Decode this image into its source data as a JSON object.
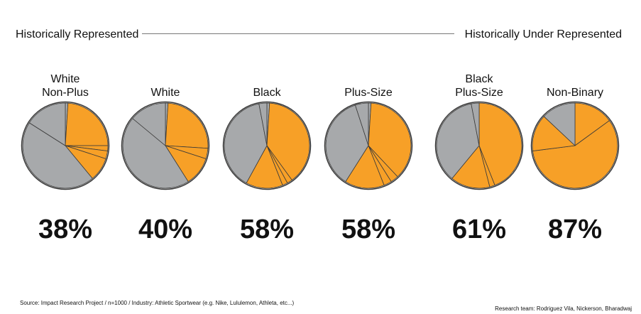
{
  "header": {
    "left_label": "Historically Represented",
    "right_label": "Historically Under Represented"
  },
  "colors": {
    "orange": "#f7a027",
    "gray": "#a7a9ab",
    "stroke": "#3a3a3a"
  },
  "chart_data": [
    {
      "type": "pie",
      "title": "White\nNon-Plus",
      "percent_label": "38%",
      "highlight_share": 0.38,
      "slices": [
        {
          "color": "gray",
          "value": 1
        },
        {
          "color": "orange",
          "value": 24
        },
        {
          "color": "orange",
          "value": 2
        },
        {
          "color": "orange",
          "value": 3
        },
        {
          "color": "orange",
          "value": 9
        },
        {
          "color": "gray",
          "value": 45
        },
        {
          "color": "gray",
          "value": 16
        }
      ]
    },
    {
      "type": "pie",
      "title": "White",
      "percent_label": "40%",
      "highlight_share": 0.4,
      "slices": [
        {
          "color": "gray",
          "value": 1
        },
        {
          "color": "orange",
          "value": 25
        },
        {
          "color": "orange",
          "value": 4
        },
        {
          "color": "orange",
          "value": 11
        },
        {
          "color": "gray",
          "value": 45
        },
        {
          "color": "gray",
          "value": 14
        }
      ]
    },
    {
      "type": "pie",
      "title": "Black",
      "percent_label": "58%",
      "highlight_share": 0.58,
      "slices": [
        {
          "color": "gray",
          "value": 1
        },
        {
          "color": "orange",
          "value": 39
        },
        {
          "color": "orange",
          "value": 2
        },
        {
          "color": "orange",
          "value": 2
        },
        {
          "color": "orange",
          "value": 14
        },
        {
          "color": "gray",
          "value": 39
        },
        {
          "color": "gray",
          "value": 3
        }
      ]
    },
    {
      "type": "pie",
      "title": "Plus-Size",
      "percent_label": "58%",
      "highlight_share": 0.58,
      "slices": [
        {
          "color": "gray",
          "value": 1
        },
        {
          "color": "orange",
          "value": 37
        },
        {
          "color": "orange",
          "value": 3
        },
        {
          "color": "orange",
          "value": 3
        },
        {
          "color": "orange",
          "value": 15
        },
        {
          "color": "gray",
          "value": 36
        },
        {
          "color": "gray",
          "value": 5
        }
      ]
    },
    {
      "type": "pie",
      "title": "Black\nPlus-Size",
      "percent_label": "61%",
      "highlight_share": 0.61,
      "slices": [
        {
          "color": "orange",
          "value": 44
        },
        {
          "color": "orange",
          "value": 2
        },
        {
          "color": "orange",
          "value": 15
        },
        {
          "color": "gray",
          "value": 36
        },
        {
          "color": "gray",
          "value": 3
        }
      ]
    },
    {
      "type": "pie",
      "title": "Non-Binary",
      "percent_label": "87%",
      "highlight_share": 0.87,
      "slices": [
        {
          "color": "orange",
          "value": 15
        },
        {
          "color": "orange",
          "value": 58
        },
        {
          "color": "orange",
          "value": 14
        },
        {
          "color": "gray",
          "value": 13
        }
      ]
    }
  ],
  "footer": {
    "source": "Source: Impact Research Project / n=1000 / Industry: Athletic Sportwear (e.g. Nike, Lululemon, Athleta, etc...)",
    "team": "Research team: Rodriguez Vila, Nickerson, Bharadwaj"
  }
}
